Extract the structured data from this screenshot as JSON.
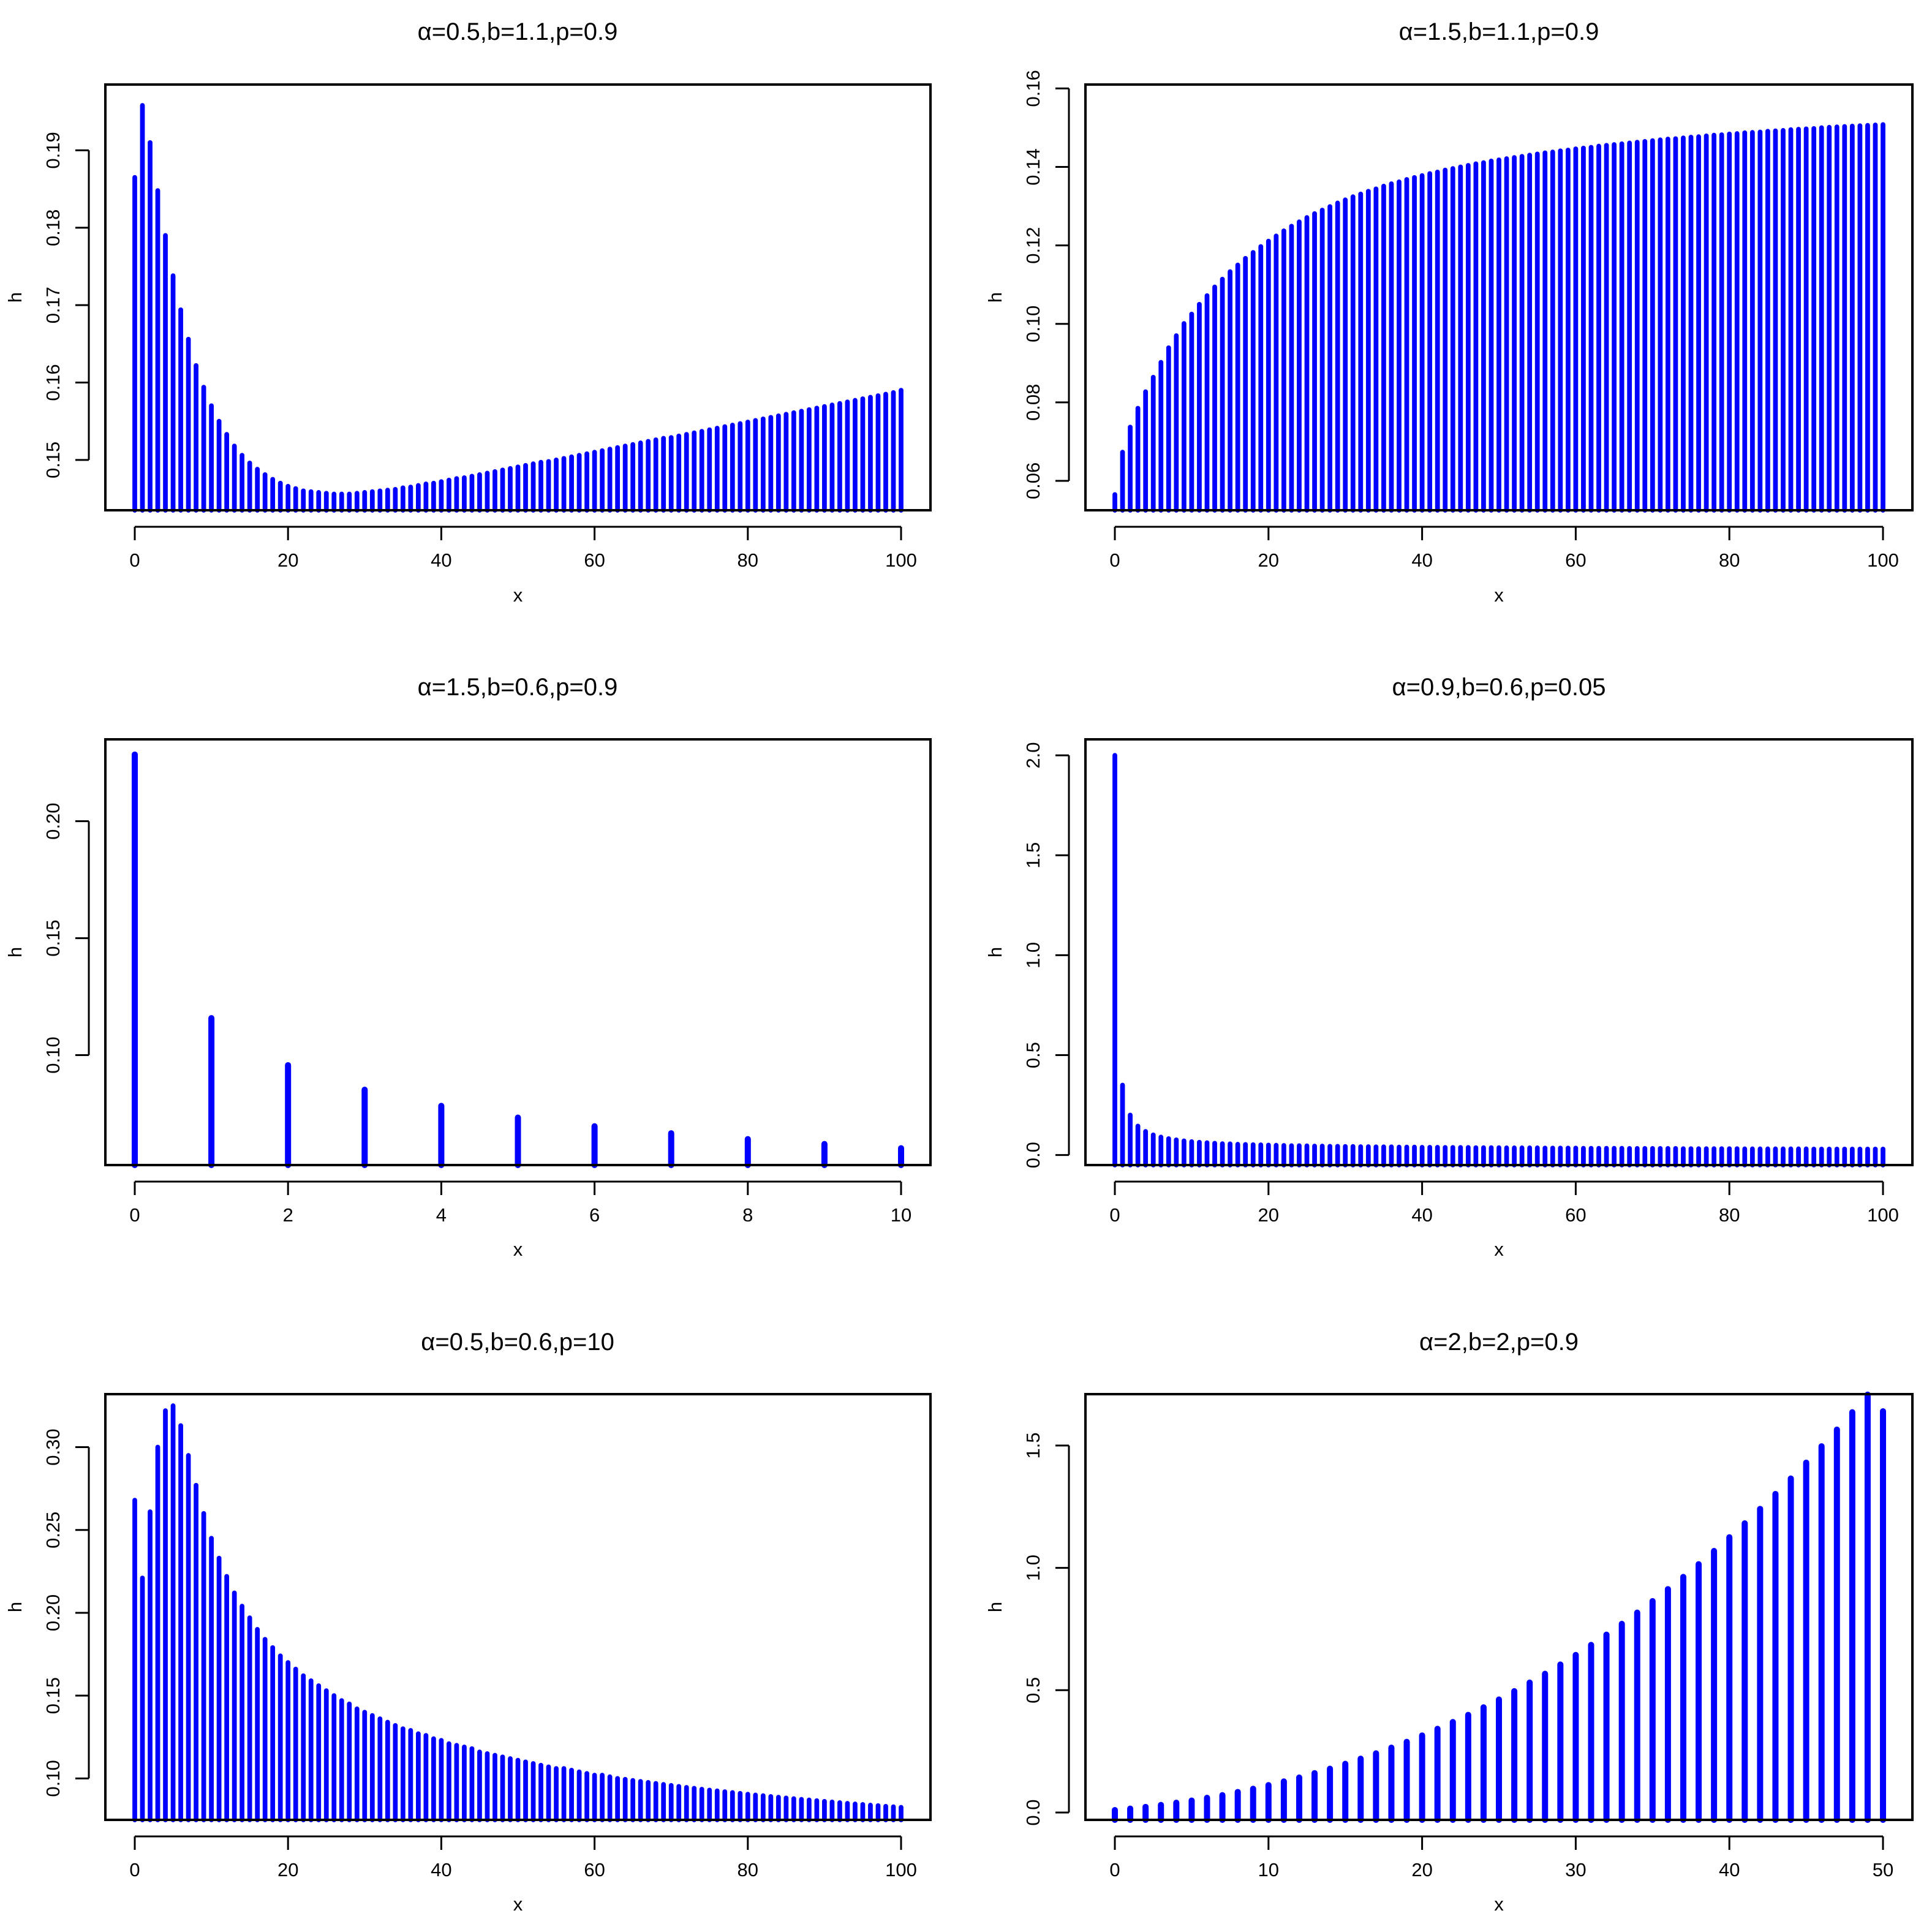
{
  "colors": {
    "bars": "#0000ff",
    "frame": "#000000",
    "background": "#ffffff"
  },
  "chart_data": [
    {
      "type": "bar",
      "title": "α=0.5,b=1.1,p=0.9",
      "xlabel": "x",
      "ylabel": "h",
      "xlim": [
        0,
        100
      ],
      "ylim": [
        0.1435,
        0.1985
      ],
      "xticks": [
        0,
        20,
        40,
        60,
        80,
        100
      ],
      "xtick_labels": [
        "0",
        "20",
        "40",
        "60",
        "80",
        "100"
      ],
      "yticks": [
        0.15,
        0.16,
        0.17,
        0.18,
        0.19
      ],
      "ytick_labels": [
        "0.15",
        "0.16",
        "0.17",
        "0.18",
        "0.19"
      ],
      "grid": false,
      "legend": "none",
      "x": [
        0,
        1,
        2,
        3,
        4,
        5,
        6,
        7,
        8,
        9,
        10,
        11,
        12,
        13,
        14,
        15,
        16,
        17,
        18,
        19,
        20,
        21,
        22,
        23,
        24,
        25,
        26,
        27,
        28,
        29,
        30,
        31,
        32,
        33,
        34,
        35,
        36,
        37,
        38,
        39,
        40,
        41,
        42,
        43,
        44,
        45,
        46,
        47,
        48,
        49,
        50,
        51,
        52,
        53,
        54,
        55,
        56,
        57,
        58,
        59,
        60,
        61,
        62,
        63,
        64,
        65,
        66,
        67,
        68,
        69,
        70,
        71,
        72,
        73,
        74,
        75,
        76,
        77,
        78,
        79,
        80,
        81,
        82,
        83,
        84,
        85,
        86,
        87,
        88,
        89,
        90,
        91,
        92,
        93,
        94,
        95,
        96,
        97,
        98,
        99,
        100
      ],
      "values": [
        0.1865,
        0.1958,
        0.191,
        0.1848,
        0.179,
        0.1738,
        0.1694,
        0.1656,
        0.1622,
        0.1594,
        0.157,
        0.155,
        0.1533,
        0.1518,
        0.1506,
        0.1496,
        0.1488,
        0.1481,
        0.1475,
        0.147,
        0.1466,
        0.1463,
        0.146,
        0.1459,
        0.1458,
        0.1457,
        0.1456,
        0.1456,
        0.1456,
        0.1457,
        0.1458,
        0.1459,
        0.146,
        0.1461,
        0.1462,
        0.1464,
        0.1465,
        0.1467,
        0.1469,
        0.147,
        0.1472,
        0.1474,
        0.1476,
        0.1477,
        0.1479,
        0.1481,
        0.1483,
        0.1485,
        0.1487,
        0.1489,
        0.1491,
        0.1493,
        0.1495,
        0.1497,
        0.1498,
        0.15,
        0.1502,
        0.1504,
        0.1506,
        0.1508,
        0.151,
        0.1512,
        0.1514,
        0.1516,
        0.1518,
        0.152,
        0.1522,
        0.1524,
        0.1526,
        0.1528,
        0.1529,
        0.1531,
        0.1533,
        0.1535,
        0.1537,
        0.1539,
        0.1541,
        0.1543,
        0.1545,
        0.1547,
        0.1549,
        0.1551,
        0.1553,
        0.1555,
        0.1557,
        0.1559,
        0.1561,
        0.1563,
        0.1565,
        0.1567,
        0.1569,
        0.1571,
        0.1573,
        0.1575,
        0.1577,
        0.1579,
        0.1581,
        0.1583,
        0.1585,
        0.1587,
        0.159
      ]
    },
    {
      "type": "bar",
      "title": "α=1.5,b=1.1,p=0.9",
      "xlabel": "x",
      "ylabel": "h",
      "xlim": [
        0,
        100
      ],
      "ylim": [
        0.0525,
        0.161
      ],
      "xticks": [
        0,
        20,
        40,
        60,
        80,
        100
      ],
      "xtick_labels": [
        "0",
        "20",
        "40",
        "60",
        "80",
        "100"
      ],
      "yticks": [
        0.06,
        0.08,
        0.1,
        0.12,
        0.14,
        0.16
      ],
      "ytick_labels": [
        "0.06",
        "0.08",
        "0.10",
        "0.12",
        "0.14",
        "0.16"
      ],
      "grid": false,
      "legend": "none",
      "x": [
        0,
        1,
        2,
        3,
        4,
        5,
        6,
        7,
        8,
        9,
        10,
        11,
        12,
        13,
        14,
        15,
        16,
        17,
        18,
        19,
        20,
        21,
        22,
        23,
        24,
        25,
        26,
        27,
        28,
        29,
        30,
        31,
        32,
        33,
        34,
        35,
        36,
        37,
        38,
        39,
        40,
        41,
        42,
        43,
        44,
        45,
        46,
        47,
        48,
        49,
        50,
        51,
        52,
        53,
        54,
        55,
        56,
        57,
        58,
        59,
        60,
        61,
        62,
        63,
        64,
        65,
        66,
        67,
        68,
        69,
        70,
        71,
        72,
        73,
        74,
        75,
        76,
        77,
        78,
        79,
        80,
        81,
        82,
        83,
        84,
        85,
        86,
        87,
        88,
        89,
        90,
        91,
        92,
        93,
        94,
        95,
        96,
        97,
        98,
        99,
        100
      ],
      "values": [
        0.0565,
        0.0673,
        0.0737,
        0.0785,
        0.0827,
        0.0864,
        0.0902,
        0.0939,
        0.097,
        0.1001,
        0.1025,
        0.105,
        0.1072,
        0.1094,
        0.1114,
        0.1133,
        0.115,
        0.1167,
        0.1182,
        0.1197,
        0.1211,
        0.1224,
        0.1237,
        0.1249,
        0.126,
        0.1271,
        0.1281,
        0.129,
        0.1299,
        0.1308,
        0.1316,
        0.1324,
        0.1331,
        0.1338,
        0.1344,
        0.1351,
        0.1357,
        0.1362,
        0.1368,
        0.1373,
        0.1378,
        0.1383,
        0.1387,
        0.1392,
        0.1396,
        0.14,
        0.1404,
        0.1408,
        0.1411,
        0.1415,
        0.1418,
        0.1421,
        0.1424,
        0.1427,
        0.143,
        0.1433,
        0.1436,
        0.1438,
        0.1441,
        0.1443,
        0.1446,
        0.1448,
        0.145,
        0.1453,
        0.1455,
        0.1457,
        0.1459,
        0.1461,
        0.1463,
        0.1465,
        0.1467,
        0.1469,
        0.1471,
        0.1472,
        0.1474,
        0.1476,
        0.1477,
        0.1479,
        0.1481,
        0.1482,
        0.1484,
        0.1485,
        0.1487,
        0.1488,
        0.1489,
        0.1491,
        0.1492,
        0.1493,
        0.1495,
        0.1496,
        0.1497,
        0.1498,
        0.15,
        0.1501,
        0.1502,
        0.1503,
        0.1504,
        0.1505,
        0.1506,
        0.1507,
        0.1508
      ]
    },
    {
      "type": "bar",
      "title": "α=1.5,b=0.6,p=0.9",
      "xlabel": "x",
      "ylabel": "h",
      "xlim": [
        0,
        10
      ],
      "ylim": [
        0.053,
        0.235
      ],
      "xticks": [
        0,
        2,
        4,
        6,
        8,
        10
      ],
      "xtick_labels": [
        "0",
        "2",
        "4",
        "6",
        "8",
        "10"
      ],
      "yticks": [
        0.1,
        0.15,
        0.2
      ],
      "ytick_labels": [
        "0.10",
        "0.15",
        "0.20"
      ],
      "grid": false,
      "legend": "none",
      "x": [
        0,
        1,
        2,
        3,
        4,
        5,
        6,
        7,
        8,
        9,
        10
      ],
      "values": [
        0.2285,
        0.1158,
        0.0957,
        0.0852,
        0.0783,
        0.0733,
        0.0696,
        0.0666,
        0.0641,
        0.062,
        0.0602
      ]
    },
    {
      "type": "bar",
      "title": "α=0.9,b=0.6,p=0.05",
      "xlabel": "x",
      "ylabel": "h",
      "xlim": [
        0,
        100
      ],
      "ylim": [
        -0.05,
        2.08
      ],
      "xticks": [
        0,
        20,
        40,
        60,
        80,
        100
      ],
      "xtick_labels": [
        "0",
        "20",
        "40",
        "60",
        "80",
        "100"
      ],
      "yticks": [
        0.0,
        0.5,
        1.0,
        1.5,
        2.0
      ],
      "ytick_labels": [
        "0.0",
        "0.5",
        "1.0",
        "1.5",
        "2.0"
      ],
      "grid": false,
      "legend": "none",
      "x": [
        0,
        1,
        2,
        3,
        4,
        5,
        6,
        7,
        8,
        9,
        10,
        11,
        12,
        13,
        14,
        15,
        16,
        17,
        18,
        19,
        20,
        21,
        22,
        23,
        24,
        25,
        26,
        27,
        28,
        29,
        30,
        31,
        32,
        33,
        34,
        35,
        36,
        37,
        38,
        39,
        40,
        41,
        42,
        43,
        44,
        45,
        46,
        47,
        48,
        49,
        50,
        51,
        52,
        53,
        54,
        55,
        56,
        57,
        58,
        59,
        60,
        61,
        62,
        63,
        64,
        65,
        66,
        67,
        68,
        69,
        70,
        71,
        72,
        73,
        74,
        75,
        76,
        77,
        78,
        79,
        80,
        81,
        82,
        83,
        84,
        85,
        86,
        87,
        88,
        89,
        90,
        91,
        92,
        93,
        94,
        95,
        96,
        97,
        98,
        99,
        100
      ],
      "values": [
        2.0,
        0.35,
        0.2,
        0.145,
        0.118,
        0.101,
        0.09,
        0.082,
        0.076,
        0.071,
        0.067,
        0.064,
        0.062,
        0.059,
        0.057,
        0.056,
        0.054,
        0.053,
        0.052,
        0.051,
        0.05,
        0.049,
        0.048,
        0.047,
        0.047,
        0.046,
        0.045,
        0.045,
        0.044,
        0.044,
        0.043,
        0.043,
        0.042,
        0.042,
        0.041,
        0.041,
        0.041,
        0.04,
        0.04,
        0.04,
        0.039,
        0.039,
        0.039,
        0.038,
        0.038,
        0.038,
        0.038,
        0.037,
        0.037,
        0.037,
        0.037,
        0.036,
        0.036,
        0.036,
        0.036,
        0.036,
        0.035,
        0.035,
        0.035,
        0.035,
        0.035,
        0.034,
        0.034,
        0.034,
        0.034,
        0.034,
        0.034,
        0.033,
        0.033,
        0.033,
        0.033,
        0.033,
        0.033,
        0.033,
        0.032,
        0.032,
        0.032,
        0.032,
        0.032,
        0.032,
        0.032,
        0.032,
        0.031,
        0.031,
        0.031,
        0.031,
        0.031,
        0.031,
        0.031,
        0.031,
        0.031,
        0.03,
        0.03,
        0.03,
        0.03,
        0.03,
        0.03,
        0.03,
        0.03,
        0.03,
        0.03
      ]
    },
    {
      "type": "bar",
      "title": "α=0.5,b=0.6,p=10",
      "xlabel": "x",
      "ylabel": "h",
      "xlim": [
        0,
        100
      ],
      "ylim": [
        0.075,
        0.332
      ],
      "xticks": [
        0,
        20,
        40,
        60,
        80,
        100
      ],
      "xtick_labels": [
        "0",
        "20",
        "40",
        "60",
        "80",
        "100"
      ],
      "yticks": [
        0.1,
        0.15,
        0.2,
        0.25,
        0.3
      ],
      "ytick_labels": [
        "0.10",
        "0.15",
        "0.20",
        "0.25",
        "0.30"
      ],
      "grid": false,
      "legend": "none",
      "x": [
        0,
        1,
        2,
        3,
        4,
        5,
        6,
        7,
        8,
        9,
        10,
        11,
        12,
        13,
        14,
        15,
        16,
        17,
        18,
        19,
        20,
        21,
        22,
        23,
        24,
        25,
        26,
        27,
        28,
        29,
        30,
        31,
        32,
        33,
        34,
        35,
        36,
        37,
        38,
        39,
        40,
        41,
        42,
        43,
        44,
        45,
        46,
        47,
        48,
        49,
        50,
        51,
        52,
        53,
        54,
        55,
        56,
        57,
        58,
        59,
        60,
        61,
        62,
        63,
        64,
        65,
        66,
        67,
        68,
        69,
        70,
        71,
        72,
        73,
        74,
        75,
        76,
        77,
        78,
        79,
        80,
        81,
        82,
        83,
        84,
        85,
        86,
        87,
        88,
        89,
        90,
        91,
        92,
        93,
        94,
        95,
        96,
        97,
        98,
        99,
        100
      ],
      "values": [
        0.268,
        0.221,
        0.261,
        0.3,
        0.322,
        0.325,
        0.313,
        0.295,
        0.277,
        0.26,
        0.245,
        0.233,
        0.222,
        0.212,
        0.204,
        0.197,
        0.19,
        0.184,
        0.179,
        0.174,
        0.17,
        0.166,
        0.162,
        0.159,
        0.156,
        0.153,
        0.15,
        0.147,
        0.145,
        0.142,
        0.14,
        0.138,
        0.136,
        0.134,
        0.132,
        0.13,
        0.129,
        0.127,
        0.126,
        0.124,
        0.123,
        0.121,
        0.12,
        0.119,
        0.118,
        0.116,
        0.115,
        0.114,
        0.113,
        0.112,
        0.111,
        0.11,
        0.109,
        0.108,
        0.107,
        0.106,
        0.106,
        0.105,
        0.104,
        0.103,
        0.102,
        0.102,
        0.101,
        0.1,
        0.0995,
        0.0988,
        0.0982,
        0.0976,
        0.097,
        0.0964,
        0.0958,
        0.0952,
        0.0946,
        0.0941,
        0.0935,
        0.093,
        0.0925,
        0.092,
        0.0915,
        0.091,
        0.0905,
        0.09,
        0.0896,
        0.0891,
        0.0887,
        0.0882,
        0.0878,
        0.0874,
        0.087,
        0.0866,
        0.0862,
        0.0858,
        0.0854,
        0.085,
        0.0846,
        0.0843,
        0.0839,
        0.0836,
        0.0832,
        0.0829,
        0.0826
      ]
    },
    {
      "type": "bar",
      "title": "α=2,b=2,p=0.9",
      "xlabel": "x",
      "ylabel": "h",
      "xlim": [
        0,
        50
      ],
      "ylim": [
        -0.03,
        1.71
      ],
      "xticks": [
        0,
        10,
        20,
        30,
        40,
        50
      ],
      "xtick_labels": [
        "0",
        "10",
        "20",
        "30",
        "40",
        "50"
      ],
      "yticks": [
        0.0,
        0.5,
        1.0,
        1.5
      ],
      "ytick_labels": [
        "0.0",
        "0.5",
        "1.0",
        "1.5"
      ],
      "grid": false,
      "legend": "none",
      "x": [
        0,
        1,
        2,
        3,
        4,
        5,
        6,
        7,
        8,
        9,
        10,
        11,
        12,
        13,
        14,
        15,
        16,
        17,
        18,
        19,
        20,
        21,
        22,
        23,
        24,
        25,
        26,
        27,
        28,
        29,
        30,
        31,
        32,
        33,
        34,
        35,
        36,
        37,
        38,
        39,
        40,
        41,
        42,
        43,
        44,
        45,
        46,
        47,
        48,
        49,
        50
      ],
      "values": [
        0.01,
        0.016,
        0.023,
        0.031,
        0.04,
        0.049,
        0.06,
        0.071,
        0.084,
        0.097,
        0.112,
        0.127,
        0.143,
        0.161,
        0.179,
        0.199,
        0.22,
        0.242,
        0.265,
        0.289,
        0.315,
        0.342,
        0.37,
        0.399,
        0.43,
        0.462,
        0.496,
        0.531,
        0.567,
        0.605,
        0.644,
        0.685,
        0.727,
        0.771,
        0.817,
        0.864,
        0.913,
        0.963,
        1.015,
        1.069,
        1.125,
        1.182,
        1.241,
        1.302,
        1.365,
        1.43,
        1.497,
        1.565,
        1.636,
        1.708,
        1.64
      ]
    }
  ]
}
